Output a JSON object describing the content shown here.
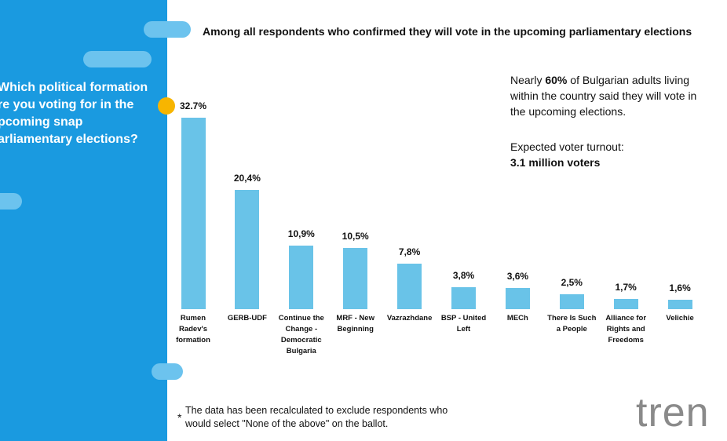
{
  "chart_data": {
    "type": "bar",
    "title": "Among all respondents who confirmed they will vote in the upcoming parliamentary elections",
    "question": [
      "Which political formation",
      "re you voting for in the",
      "pcoming snap",
      "arliamentary elections?"
    ],
    "annotation": [
      "Nearly ",
      "60%",
      " of Bulgarian adults living within the country said they will vote in the upcoming elections."
    ],
    "turnout_label": "Expected voter turnout:",
    "turnout_value": "3.1 million voters",
    "footnote_mark": "*",
    "footnote": "The data has been recalculated to exclude respondents who would select \"None of the above\" on the ballot.",
    "logo": "tren",
    "categories": [
      "Rumen Radev's formation",
      "GERB-UDF",
      "Continue the Change - Democratic Bulgaria",
      "MRF - New Beginning",
      "Vazrazhdane",
      "BSP - United Left",
      "MECh",
      "There Is Such a People",
      "Alliance for Rights and Freedoms",
      "Velichie"
    ],
    "values": [
      32.7,
      20.4,
      10.9,
      10.5,
      7.8,
      3.8,
      3.6,
      2.5,
      1.7,
      1.6
    ],
    "value_labels": [
      "32.7%",
      "20,4%",
      "10,9%",
      "10,5%",
      "7,8%",
      "3,8%",
      "3,6%",
      "2,5%",
      "1,7%",
      "1,6%"
    ],
    "color": "#69c3e8"
  }
}
